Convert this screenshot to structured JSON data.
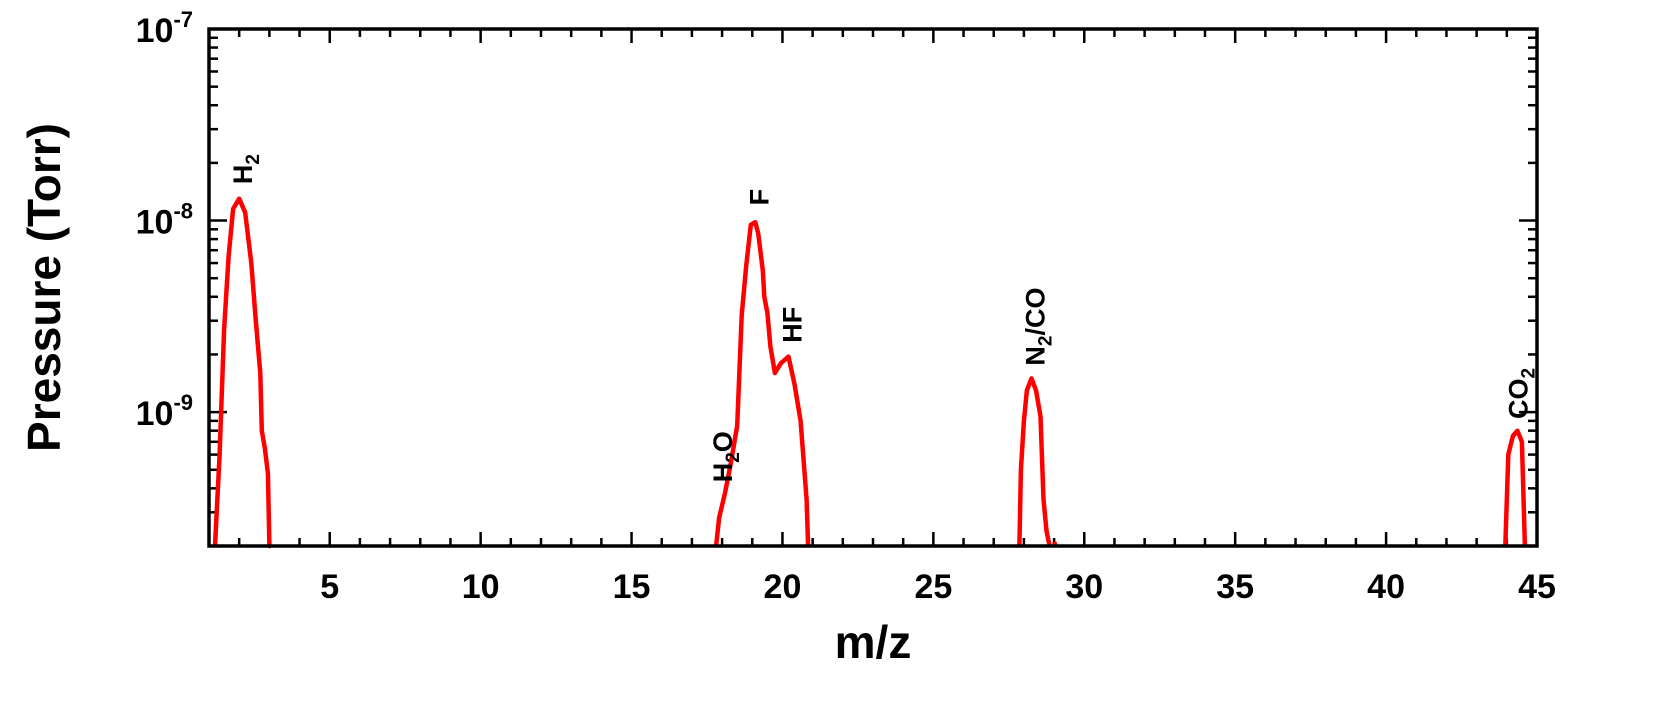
{
  "chart_data": {
    "type": "line",
    "title": "",
    "xlabel": "m/z",
    "ylabel": "Pressure (Torr)",
    "xlim": [
      1.0,
      45.0
    ],
    "ylim": [
      2e-10,
      1e-07
    ],
    "yscale": "log",
    "grid": false,
    "x_ticks": [
      5,
      10,
      15,
      20,
      25,
      30,
      35,
      40,
      45
    ],
    "y_ticks": [
      {
        "value": 1e-09,
        "base": "10",
        "exp": "-9"
      },
      {
        "value": 1e-08,
        "base": "10",
        "exp": "-8"
      },
      {
        "value": 1e-07,
        "base": "10",
        "exp": "-7"
      }
    ],
    "series_color": "#ff0000",
    "segments": [
      {
        "x": [
          1.2,
          1.35,
          1.5,
          1.65,
          1.8,
          2.0,
          2.2,
          2.4,
          2.55,
          2.7,
          2.75,
          2.85,
          2.95,
          3.0,
          3.05
        ],
        "y": [
          2e-10,
          6e-10,
          2.7e-09,
          6.5e-09,
          1.15e-08,
          1.3e-08,
          1.1e-08,
          6e-09,
          3e-09,
          1.6e-09,
          8e-10,
          6.5e-10,
          4.8e-10,
          2e-10,
          2e-10
        ]
      },
      {
        "x": [
          17.8,
          17.9,
          18.1,
          18.3,
          18.5,
          18.65,
          18.8,
          18.95,
          19.1,
          19.2,
          19.35,
          19.4,
          19.5,
          19.6,
          19.75,
          19.95,
          20.2,
          20.4,
          20.6,
          20.8,
          20.85
        ],
        "y": [
          2e-10,
          2.8e-10,
          3.8e-10,
          5.5e-10,
          8.5e-10,
          3.2e-09,
          5.8e-09,
          9.5e-09,
          9.8e-09,
          8.5e-09,
          5.5e-09,
          4e-09,
          3.3e-09,
          2.2e-09,
          1.6e-09,
          1.8e-09,
          1.95e-09,
          1.4e-09,
          9e-10,
          3.5e-10,
          2e-10
        ]
      },
      {
        "x": [
          27.85,
          27.9,
          28.0,
          28.1,
          28.25,
          28.4,
          28.55,
          28.65,
          28.75,
          28.85
        ],
        "y": [
          2e-10,
          5e-10,
          9e-10,
          1.3e-09,
          1.5e-09,
          1.3e-09,
          9.5e-10,
          3.5e-10,
          2.4e-10,
          2e-10
        ]
      },
      {
        "x": [
          29.0,
          29.05
        ],
        "y": [
          2.1e-10,
          2e-10
        ]
      },
      {
        "x": [
          43.95,
          44.05,
          44.2,
          44.35,
          44.5,
          44.6
        ],
        "y": [
          2e-10,
          6e-10,
          7.5e-10,
          8e-10,
          7e-10,
          2e-10
        ]
      }
    ],
    "annotations": [
      {
        "base": "H",
        "sub": "2",
        "after": "",
        "x": 2.1,
        "y": 1.55e-08
      },
      {
        "base": "F",
        "sub": "",
        "after": "",
        "x": 19.2,
        "y": 1.2e-08
      },
      {
        "base": "HF",
        "sub": "",
        "after": "",
        "x": 20.3,
        "y": 2.3e-09
      },
      {
        "base": "H",
        "sub": "2",
        "after": "O",
        "x": 18.0,
        "y": 4.3e-10
      },
      {
        "base": "N",
        "sub": "2",
        "after": "/CO",
        "x": 28.35,
        "y": 1.75e-09
      },
      {
        "base": "CO",
        "sub": "2",
        "after": "",
        "x": 44.35,
        "y": 9.2e-10
      }
    ]
  }
}
